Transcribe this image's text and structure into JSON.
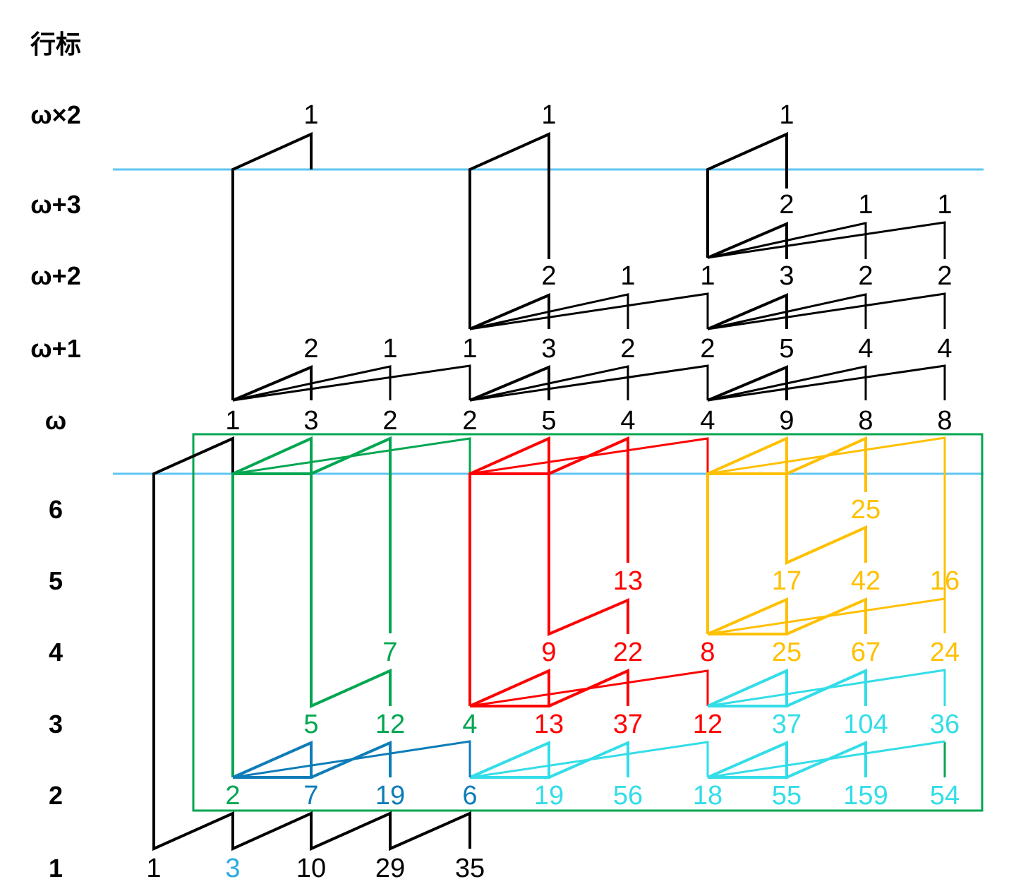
{
  "colors": {
    "black": "#000000",
    "green": "#00a650",
    "red": "#ff0000",
    "orange": "#ffc000",
    "cyan": "#33dde8",
    "blue": "#0e7cb8",
    "sky": "#29abe2",
    "divider": "#5fc5f0",
    "box": "#00a650"
  },
  "row_header": "行标",
  "rows": {
    "w2": "ω×2",
    "w3": "ω+3",
    "w2b": "ω+2",
    "w1": "ω+1",
    "w": "ω",
    "r6": "6",
    "r5": "5",
    "r4": "4",
    "r3": "3",
    "r2": "2",
    "r1": "1"
  },
  "numbers": {
    "w2": [
      {
        "text": "1",
        "color": "black"
      },
      {
        "text": "1",
        "color": "black"
      },
      {
        "text": "1",
        "color": "black"
      }
    ],
    "w3": [
      {
        "text": "2",
        "color": "black"
      },
      {
        "text": "1",
        "color": "black"
      },
      {
        "text": "1",
        "color": "black"
      }
    ],
    "w2b": [
      {
        "text": "2",
        "color": "black"
      },
      {
        "text": "1",
        "color": "black"
      },
      {
        "text": "1",
        "color": "black"
      },
      {
        "text": "3",
        "color": "black"
      },
      {
        "text": "2",
        "color": "black"
      },
      {
        "text": "2",
        "color": "black"
      }
    ],
    "w1": [
      {
        "text": "2",
        "color": "black"
      },
      {
        "text": "1",
        "color": "black"
      },
      {
        "text": "1",
        "color": "black"
      },
      {
        "text": "3",
        "color": "black"
      },
      {
        "text": "2",
        "color": "black"
      },
      {
        "text": "2",
        "color": "black"
      },
      {
        "text": "5",
        "color": "black"
      },
      {
        "text": "4",
        "color": "black"
      },
      {
        "text": "4",
        "color": "black"
      }
    ],
    "w": [
      {
        "text": "1",
        "color": "black"
      },
      {
        "text": "3",
        "color": "black"
      },
      {
        "text": "2",
        "color": "black"
      },
      {
        "text": "2",
        "color": "black"
      },
      {
        "text": "5",
        "color": "black"
      },
      {
        "text": "4",
        "color": "black"
      },
      {
        "text": "4",
        "color": "black"
      },
      {
        "text": "9",
        "color": "black"
      },
      {
        "text": "8",
        "color": "black"
      },
      {
        "text": "8",
        "color": "black"
      }
    ],
    "r6": [
      {
        "text": "25",
        "color": "orange"
      }
    ],
    "r5": [
      {
        "text": "13",
        "color": "red"
      },
      {
        "text": "17",
        "color": "orange"
      },
      {
        "text": "42",
        "color": "orange"
      },
      {
        "text": "16",
        "color": "orange"
      }
    ],
    "r4": [
      {
        "text": "7",
        "color": "green"
      },
      {
        "text": "9",
        "color": "red"
      },
      {
        "text": "22",
        "color": "red"
      },
      {
        "text": "8",
        "color": "red"
      },
      {
        "text": "25",
        "color": "orange"
      },
      {
        "text": "67",
        "color": "orange"
      },
      {
        "text": "24",
        "color": "orange"
      }
    ],
    "r3": [
      {
        "text": "5",
        "color": "green"
      },
      {
        "text": "12",
        "color": "green"
      },
      {
        "text": "4",
        "color": "green"
      },
      {
        "text": "13",
        "color": "red"
      },
      {
        "text": "37",
        "color": "red"
      },
      {
        "text": "12",
        "color": "red"
      },
      {
        "text": "37",
        "color": "cyan"
      },
      {
        "text": "104",
        "color": "cyan"
      },
      {
        "text": "36",
        "color": "cyan"
      }
    ],
    "r2": [
      {
        "text": "2",
        "color": "green"
      },
      {
        "text": "7",
        "color": "blue"
      },
      {
        "text": "19",
        "color": "blue"
      },
      {
        "text": "6",
        "color": "blue"
      },
      {
        "text": "19",
        "color": "cyan"
      },
      {
        "text": "56",
        "color": "cyan"
      },
      {
        "text": "18",
        "color": "cyan"
      },
      {
        "text": "55",
        "color": "cyan"
      },
      {
        "text": "159",
        "color": "cyan"
      },
      {
        "text": "54",
        "color": "cyan"
      }
    ],
    "r1": [
      {
        "text": "1",
        "color": "black"
      },
      {
        "text": "3",
        "color": "sky"
      },
      {
        "text": "10",
        "color": "black"
      },
      {
        "text": "29",
        "color": "black"
      },
      {
        "text": "35",
        "color": "black"
      }
    ]
  }
}
